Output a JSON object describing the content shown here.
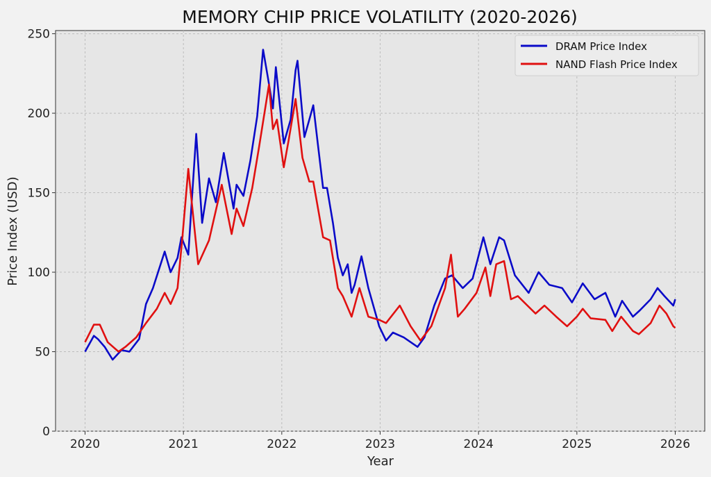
{
  "chart_data": {
    "type": "line",
    "title": "MEMORY CHIP PRICE VOLATILITY (2020-2026)",
    "xlabel": "Year",
    "ylabel": "Price Index (USD)",
    "xlim": [
      2019.7,
      2026.3
    ],
    "ylim": [
      0,
      252
    ],
    "xticks": [
      2020,
      2021,
      2022,
      2023,
      2024,
      2025,
      2026
    ],
    "yticks": [
      0,
      50,
      100,
      150,
      200,
      250
    ],
    "grid": true,
    "legend_position": "top-right",
    "series": [
      {
        "name": "DRAM Price Index",
        "color": "#0a0ac8",
        "points": [
          [
            2020.0,
            50
          ],
          [
            2020.09,
            60
          ],
          [
            2020.13,
            58
          ],
          [
            2020.2,
            53
          ],
          [
            2020.28,
            45
          ],
          [
            2020.37,
            51
          ],
          [
            2020.45,
            50
          ],
          [
            2020.55,
            58
          ],
          [
            2020.62,
            80
          ],
          [
            2020.69,
            90
          ],
          [
            2020.81,
            113
          ],
          [
            2020.87,
            100
          ],
          [
            2020.94,
            109
          ],
          [
            2020.98,
            122
          ],
          [
            2021.05,
            111
          ],
          [
            2021.08,
            140
          ],
          [
            2021.13,
            187
          ],
          [
            2021.19,
            131
          ],
          [
            2021.26,
            159
          ],
          [
            2021.33,
            144
          ],
          [
            2021.41,
            175
          ],
          [
            2021.51,
            140
          ],
          [
            2021.54,
            155
          ],
          [
            2021.61,
            148
          ],
          [
            2021.68,
            170
          ],
          [
            2021.75,
            198
          ],
          [
            2021.81,
            240
          ],
          [
            2021.86,
            222
          ],
          [
            2021.91,
            203
          ],
          [
            2021.94,
            229
          ],
          [
            2022.02,
            181
          ],
          [
            2022.09,
            196
          ],
          [
            2022.14,
            227
          ],
          [
            2022.16,
            233
          ],
          [
            2022.23,
            185
          ],
          [
            2022.28,
            196
          ],
          [
            2022.32,
            205
          ],
          [
            2022.37,
            179
          ],
          [
            2022.42,
            153
          ],
          [
            2022.46,
            153
          ],
          [
            2022.52,
            131
          ],
          [
            2022.57,
            109
          ],
          [
            2022.62,
            98
          ],
          [
            2022.67,
            105
          ],
          [
            2022.71,
            87
          ],
          [
            2022.74,
            92
          ],
          [
            2022.81,
            110
          ],
          [
            2022.88,
            90
          ],
          [
            2022.99,
            66
          ],
          [
            2023.06,
            57
          ],
          [
            2023.13,
            62
          ],
          [
            2023.24,
            59
          ],
          [
            2023.38,
            53
          ],
          [
            2023.45,
            59
          ],
          [
            2023.55,
            79
          ],
          [
            2023.66,
            96
          ],
          [
            2023.73,
            98
          ],
          [
            2023.84,
            90
          ],
          [
            2023.94,
            96
          ],
          [
            2024.05,
            122
          ],
          [
            2024.12,
            105
          ],
          [
            2024.21,
            122
          ],
          [
            2024.26,
            120
          ],
          [
            2024.37,
            98
          ],
          [
            2024.51,
            87
          ],
          [
            2024.61,
            100
          ],
          [
            2024.72,
            92
          ],
          [
            2024.85,
            90
          ],
          [
            2024.95,
            81
          ],
          [
            2025.06,
            93
          ],
          [
            2025.18,
            83
          ],
          [
            2025.29,
            87
          ],
          [
            2025.39,
            72
          ],
          [
            2025.46,
            82
          ],
          [
            2025.57,
            72
          ],
          [
            2025.64,
            76
          ],
          [
            2025.75,
            83
          ],
          [
            2025.82,
            90
          ],
          [
            2025.89,
            85
          ],
          [
            2025.98,
            79
          ],
          [
            2026.0,
            83
          ]
        ]
      },
      {
        "name": "NAND Flash Price Index",
        "color": "#e01010",
        "points": [
          [
            2020.0,
            56
          ],
          [
            2020.09,
            67
          ],
          [
            2020.15,
            67
          ],
          [
            2020.23,
            56
          ],
          [
            2020.34,
            50
          ],
          [
            2020.41,
            53
          ],
          [
            2020.52,
            59
          ],
          [
            2020.62,
            68
          ],
          [
            2020.73,
            77
          ],
          [
            2020.81,
            87
          ],
          [
            2020.87,
            80
          ],
          [
            2020.94,
            90
          ],
          [
            2020.99,
            122
          ],
          [
            2021.05,
            165
          ],
          [
            2021.15,
            105
          ],
          [
            2021.26,
            120
          ],
          [
            2021.39,
            155
          ],
          [
            2021.49,
            124
          ],
          [
            2021.54,
            140
          ],
          [
            2021.61,
            129
          ],
          [
            2021.7,
            153
          ],
          [
            2021.77,
            179
          ],
          [
            2021.87,
            218
          ],
          [
            2021.91,
            190
          ],
          [
            2021.95,
            196
          ],
          [
            2022.02,
            166
          ],
          [
            2022.07,
            183
          ],
          [
            2022.14,
            209
          ],
          [
            2022.21,
            172
          ],
          [
            2022.28,
            157
          ],
          [
            2022.32,
            157
          ],
          [
            2022.42,
            122
          ],
          [
            2022.49,
            120
          ],
          [
            2022.57,
            90
          ],
          [
            2022.62,
            85
          ],
          [
            2022.71,
            72
          ],
          [
            2022.79,
            90
          ],
          [
            2022.88,
            72
          ],
          [
            2022.99,
            70
          ],
          [
            2023.06,
            68
          ],
          [
            2023.2,
            79
          ],
          [
            2023.31,
            66
          ],
          [
            2023.41,
            57
          ],
          [
            2023.52,
            66
          ],
          [
            2023.66,
            90
          ],
          [
            2023.72,
            111
          ],
          [
            2023.79,
            72
          ],
          [
            2023.86,
            77
          ],
          [
            2023.98,
            87
          ],
          [
            2024.07,
            103
          ],
          [
            2024.12,
            85
          ],
          [
            2024.18,
            105
          ],
          [
            2024.26,
            107
          ],
          [
            2024.33,
            83
          ],
          [
            2024.4,
            85
          ],
          [
            2024.58,
            74
          ],
          [
            2024.67,
            79
          ],
          [
            2024.79,
            72
          ],
          [
            2024.9,
            66
          ],
          [
            2025.0,
            72
          ],
          [
            2025.06,
            77
          ],
          [
            2025.14,
            71
          ],
          [
            2025.29,
            70
          ],
          [
            2025.36,
            63
          ],
          [
            2025.45,
            72
          ],
          [
            2025.57,
            63
          ],
          [
            2025.63,
            61
          ],
          [
            2025.75,
            68
          ],
          [
            2025.84,
            79
          ],
          [
            2025.91,
            74
          ],
          [
            2025.98,
            66
          ],
          [
            2026.0,
            65
          ]
        ]
      }
    ]
  }
}
